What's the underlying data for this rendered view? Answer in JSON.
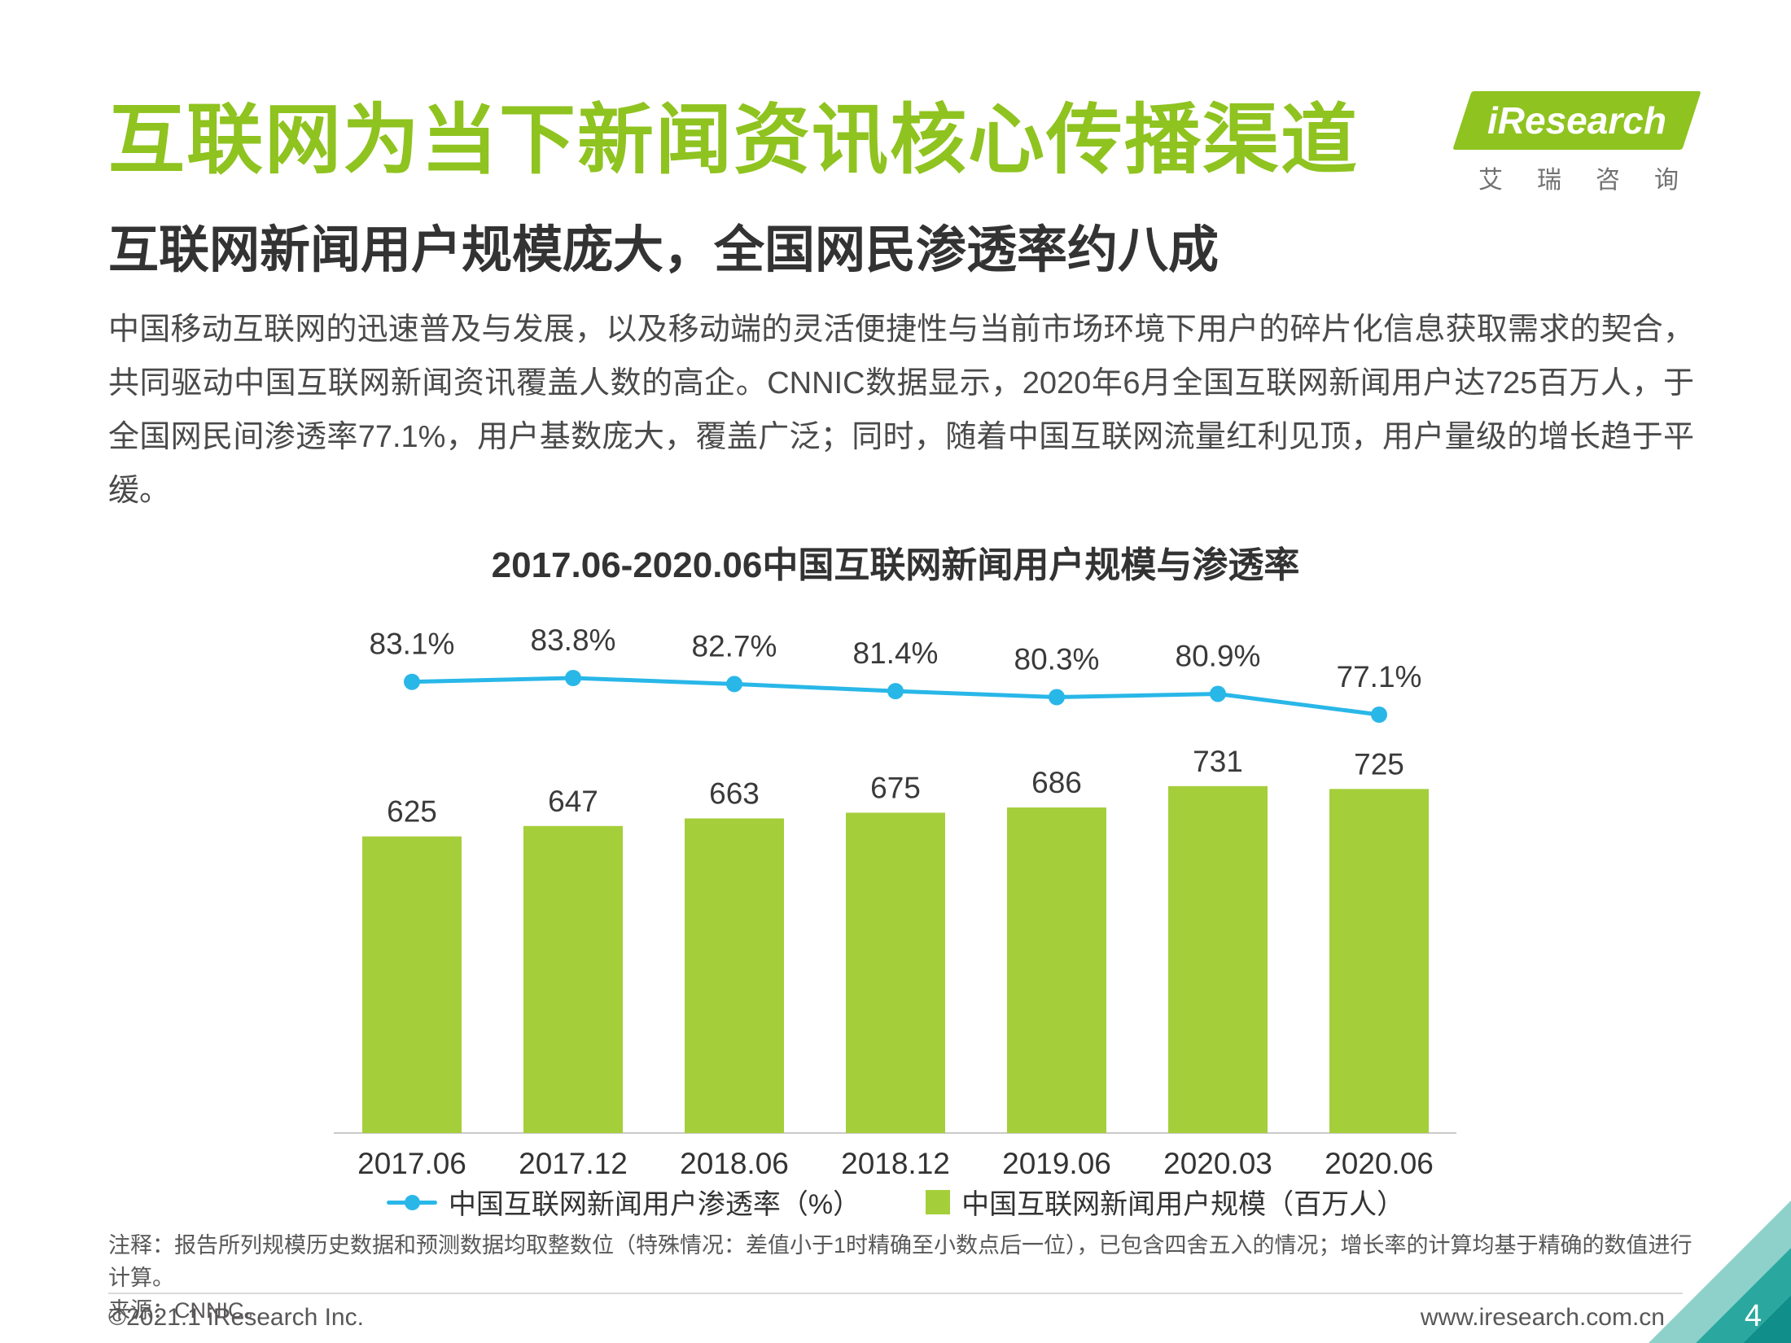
{
  "page": {
    "title": "互联网为当下新闻资讯核心传播渠道",
    "subtitle": "互联网新闻用户规模庞大，全国网民渗透率约八成",
    "paragraph": "中国移动互联网的迅速普及与发展，以及移动端的灵活便捷性与当前市场环境下用户的碎片化信息获取需求的契合，共同驱动中国互联网新闻资讯覆盖人数的高企。CNNIC数据显示，2020年6月全国互联网新闻用户达725百万人，于全国网民间渗透率77.1%，用户基数庞大，覆盖广泛；同时，随着中国互联网流量红利见顶，用户量级的增长趋于平缓。",
    "note_line1": "注释：报告所列规模历史数据和预测数据均取整数位（特殊情况：差值小于1时精确至小数点后一位），已包含四舍五入的情况；增长率的计算均基于精确的数值进行计算。",
    "note_line2": "来源：CNNIC。",
    "footer_left": "©2021.1 iResearch Inc.",
    "footer_right": "www.iresearch.com.cn",
    "page_number": "4"
  },
  "logo": {
    "brand": "iResearch",
    "brand_cn": "艾瑞咨询"
  },
  "colors": {
    "brand_green": "#8fc320",
    "bar_green": "#a5ce3b",
    "line_cyan": "#29b7e8"
  },
  "chart_data": {
    "type": "bar",
    "title": "2017.06-2020.06中国互联网新闻用户规模与渗透率",
    "categories": [
      "2017.06",
      "2017.12",
      "2018.06",
      "2018.12",
      "2019.06",
      "2020.03",
      "2020.06"
    ],
    "series": [
      {
        "name": "中国互联网新闻用户规模（百万人）",
        "type": "bar",
        "color": "#a5ce3b",
        "values": [
          625,
          647,
          663,
          675,
          686,
          731,
          725
        ]
      },
      {
        "name": "中国互联网新闻用户渗透率（%）",
        "type": "line",
        "color": "#29b7e8",
        "values": [
          83.1,
          83.8,
          82.7,
          81.4,
          80.3,
          80.9,
          77.1
        ]
      }
    ],
    "bar_value_labels": [
      "625",
      "647",
      "663",
      "675",
      "686",
      "731",
      "725"
    ],
    "line_value_labels": [
      "83.1%",
      "83.8%",
      "82.7%",
      "81.4%",
      "80.3%",
      "80.9%",
      "77.1%"
    ],
    "legend": [
      "中国互联网新闻用户渗透率（%）",
      "中国互联网新闻用户规模（百万人）"
    ],
    "xlabel": "",
    "ylabel": "",
    "ylim": [
      0,
      800
    ],
    "grid": false,
    "legend_position": "bottom"
  }
}
